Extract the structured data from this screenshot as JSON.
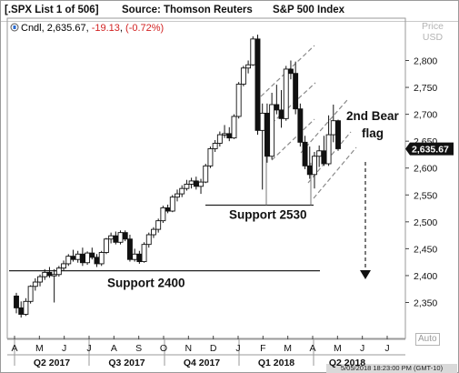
{
  "header": {
    "list_label": "[.SPX List 1 of 506]",
    "source_label": "Source: Thomson Reuters",
    "index_label": "S&P 500 Index"
  },
  "legend": {
    "series": "Cndl",
    "value": "2,635.67",
    "change": "-19.13",
    "change_pct": "(-0.72%)"
  },
  "price_header": {
    "line1": "Price",
    "line2": "USD"
  },
  "auto_label": "Auto",
  "timestamp": "5/05/2018 18:23:00 PM  (GMT-10)",
  "colors": {
    "up": "#ffffff",
    "down": "#111111",
    "channel": "#8a8a8a",
    "support": "#222222",
    "negative": "#d22222",
    "last_price_bg": "#111111"
  },
  "chart_data": {
    "type": "candlestick",
    "title": "S&P 500 Index",
    "ylabel": "Price USD",
    "ylim": [
      2295,
      2855
    ],
    "y_ticks": [
      {
        "v": 2800,
        "t": "2,800"
      },
      {
        "v": 2750,
        "t": "2,750"
      },
      {
        "v": 2700,
        "t": "2,700"
      },
      {
        "v": 2650,
        "t": "2,650"
      },
      {
        "v": 2600,
        "t": "2,600"
      },
      {
        "v": 2550,
        "t": "2,550"
      },
      {
        "v": 2500,
        "t": "2,500"
      },
      {
        "v": 2450,
        "t": "2,450"
      },
      {
        "v": 2400,
        "t": "2,400"
      },
      {
        "v": 2350,
        "t": "2,350"
      }
    ],
    "last_price": {
      "value": 2635.67,
      "label": "2,635.67"
    },
    "x_months": [
      "A",
      "M",
      "J",
      "J",
      "A",
      "S",
      "O",
      "N",
      "D",
      "J",
      "F",
      "M",
      "A",
      "M",
      "J",
      "J"
    ],
    "x_quarters": [
      "Q2 2017",
      "Q3 2017",
      "Q4 2017",
      "Q1 2018",
      "Q2 2018"
    ],
    "candles": [
      [
        2362,
        2368,
        2330,
        2340
      ],
      [
        2340,
        2352,
        2322,
        2328
      ],
      [
        2328,
        2358,
        2325,
        2352
      ],
      [
        2352,
        2382,
        2348,
        2380
      ],
      [
        2380,
        2395,
        2372,
        2388
      ],
      [
        2388,
        2402,
        2380,
        2398
      ],
      [
        2398,
        2412,
        2392,
        2406
      ],
      [
        2406,
        2416,
        2396,
        2400
      ],
      [
        2400,
        2412,
        2350,
        2402
      ],
      [
        2402,
        2418,
        2398,
        2414
      ],
      [
        2414,
        2428,
        2410,
        2422
      ],
      [
        2422,
        2440,
        2418,
        2436
      ],
      [
        2436,
        2448,
        2426,
        2430
      ],
      [
        2430,
        2446,
        2424,
        2440
      ],
      [
        2440,
        2452,
        2418,
        2424
      ],
      [
        2424,
        2445,
        2420,
        2442
      ],
      [
        2442,
        2452,
        2430,
        2434
      ],
      [
        2434,
        2440,
        2416,
        2422
      ],
      [
        2422,
        2446,
        2418,
        2443
      ],
      [
        2443,
        2470,
        2440,
        2468
      ],
      [
        2468,
        2480,
        2460,
        2474
      ],
      [
        2474,
        2482,
        2458,
        2462
      ],
      [
        2462,
        2484,
        2458,
        2480
      ],
      [
        2480,
        2484,
        2464,
        2468
      ],
      [
        2468,
        2476,
        2426,
        2430
      ],
      [
        2430,
        2450,
        2426,
        2440
      ],
      [
        2440,
        2446,
        2422,
        2426
      ],
      [
        2426,
        2462,
        2424,
        2458
      ],
      [
        2458,
        2480,
        2452,
        2476
      ],
      [
        2476,
        2490,
        2470,
        2486
      ],
      [
        2486,
        2506,
        2480,
        2502
      ],
      [
        2502,
        2530,
        2498,
        2526
      ],
      [
        2526,
        2532,
        2516,
        2520
      ],
      [
        2520,
        2550,
        2518,
        2546
      ],
      [
        2546,
        2560,
        2538,
        2552
      ],
      [
        2552,
        2568,
        2546,
        2562
      ],
      [
        2562,
        2578,
        2558,
        2570
      ],
      [
        2570,
        2582,
        2562,
        2576
      ],
      [
        2576,
        2584,
        2560,
        2566
      ],
      [
        2566,
        2580,
        2552,
        2574
      ],
      [
        2574,
        2608,
        2572,
        2604
      ],
      [
        2604,
        2640,
        2600,
        2636
      ],
      [
        2636,
        2652,
        2630,
        2646
      ],
      [
        2646,
        2668,
        2640,
        2662
      ],
      [
        2662,
        2680,
        2656,
        2664
      ],
      [
        2664,
        2676,
        2650,
        2656
      ],
      [
        2656,
        2700,
        2654,
        2696
      ],
      [
        2696,
        2760,
        2692,
        2756
      ],
      [
        2756,
        2790,
        2752,
        2786
      ],
      [
        2786,
        2800,
        2776,
        2792
      ],
      [
        2792,
        2845,
        2790,
        2840
      ],
      [
        2840,
        2848,
        2662,
        2670
      ],
      [
        2670,
        2720,
        2560,
        2702
      ],
      [
        2702,
        2720,
        2610,
        2622
      ],
      [
        2622,
        2740,
        2616,
        2718
      ],
      [
        2718,
        2755,
        2700,
        2708
      ],
      [
        2708,
        2745,
        2675,
        2692
      ],
      [
        2692,
        2790,
        2688,
        2784
      ],
      [
        2784,
        2800,
        2765,
        2776
      ],
      [
        2776,
        2798,
        2700,
        2710
      ],
      [
        2710,
        2720,
        2640,
        2648
      ],
      [
        2648,
        2660,
        2598,
        2604
      ],
      [
        2604,
        2640,
        2580,
        2588
      ],
      [
        2588,
        2630,
        2562,
        2622
      ],
      [
        2622,
        2642,
        2602,
        2632
      ],
      [
        2632,
        2660,
        2604,
        2608
      ],
      [
        2608,
        2698,
        2604,
        2662
      ],
      [
        2662,
        2718,
        2648,
        2688
      ],
      [
        2688,
        2690,
        2632,
        2636
      ]
    ],
    "annotations": {
      "support_2400": "Support 2400",
      "support_2530": "Support 2530",
      "flag_line1": "2nd Bear",
      "flag_line2": "flag"
    }
  }
}
